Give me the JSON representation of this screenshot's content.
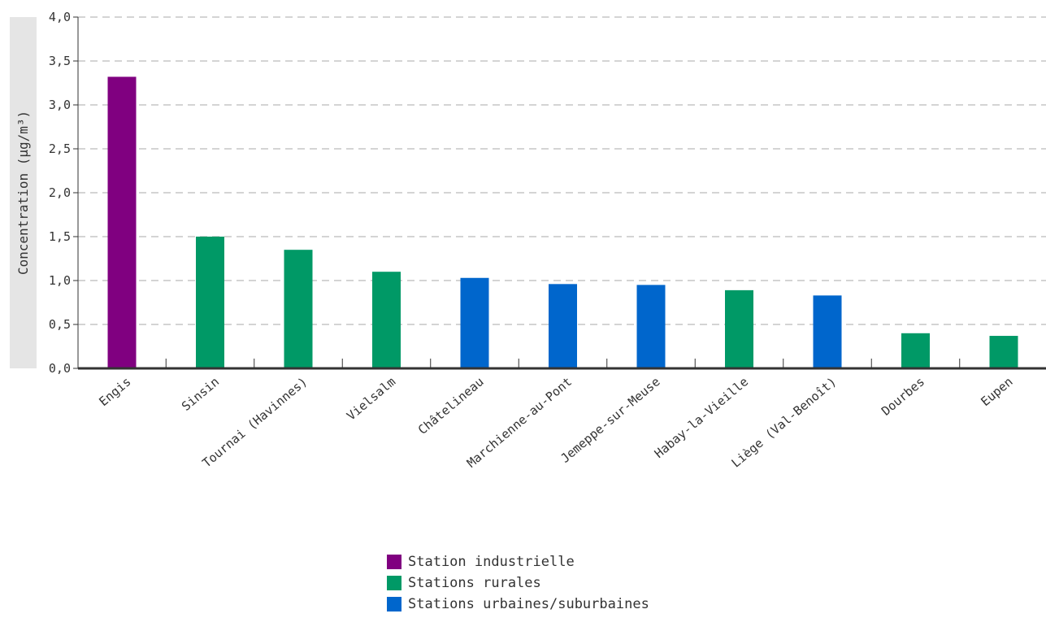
{
  "chart_data": {
    "type": "bar",
    "title": "",
    "xlabel": "",
    "ylabel": "Concentration (µg/m³)",
    "ylim": [
      0,
      4
    ],
    "yticks": [
      "0,0",
      "0,5",
      "1,0",
      "1,5",
      "2,0",
      "2,5",
      "3,0",
      "3,5",
      "4,0"
    ],
    "grid": true,
    "legend_position": "bottom-center",
    "categories": [
      "Engis",
      "Sinsin",
      "Tournai (Havinnes)",
      "Vielsalm",
      "Châtelineau",
      "Marchienne-au-Pont",
      "Jemeppe-sur-Meuse",
      "Habay-la-Vieille",
      "Liège (Val-Benoît)",
      "Dourbes",
      "Eupen"
    ],
    "values": [
      3.32,
      1.5,
      1.35,
      1.1,
      1.03,
      0.96,
      0.95,
      0.89,
      0.83,
      0.4,
      0.37
    ],
    "groups": [
      "Station industrielle",
      "Stations rurales",
      "Stations rurales",
      "Stations rurales",
      "Stations urbaines/suburbaines",
      "Stations urbaines/suburbaines",
      "Stations urbaines/suburbaines",
      "Stations rurales",
      "Stations urbaines/suburbaines",
      "Stations rurales",
      "Stations rurales"
    ],
    "legend": [
      {
        "label": "Station industrielle",
        "color": "#800080"
      },
      {
        "label": "Stations rurales",
        "color": "#009966"
      },
      {
        "label": "Stations urbaines/suburbaines",
        "color": "#0066cc"
      }
    ]
  }
}
